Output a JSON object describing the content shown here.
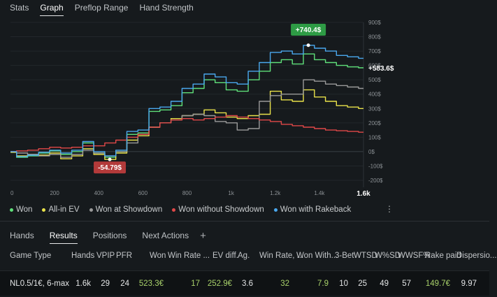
{
  "top_tabs": [
    {
      "label": "Stats"
    },
    {
      "label": "Graph"
    },
    {
      "label": "Preflop Range"
    },
    {
      "label": "Hand Strength"
    }
  ],
  "chart": {
    "callouts": {
      "peak": "+740.4$",
      "current": "+583.6$",
      "trough": "-54.79$"
    },
    "y_ticks": [
      "900$",
      "800$",
      "700$",
      "600$",
      "500$",
      "400$",
      "300$",
      "200$",
      "100$",
      "0$",
      "-100$",
      "-200$"
    ],
    "x_ticks": [
      "0",
      "200",
      "400",
      "600",
      "800",
      "1k",
      "1.2k",
      "1.4k",
      "1.6k"
    ],
    "colors": {
      "won": "#5fe07a",
      "all_in_ev": "#e9e24a",
      "showdown": "#9a9a9a",
      "without_showdown": "#e04848",
      "rakeback": "#4aa8ee",
      "peak_bg": "#2e9b45",
      "trough_bg": "#b33a3a"
    }
  },
  "chart_data": {
    "type": "line",
    "xlabel": "",
    "ylabel": "",
    "xlim": [
      0,
      1600
    ],
    "ylim": [
      -200,
      900
    ],
    "grid": true,
    "legend": "bottom",
    "x": [
      0,
      50,
      100,
      150,
      200,
      250,
      300,
      350,
      400,
      450,
      500,
      550,
      600,
      650,
      700,
      750,
      800,
      850,
      900,
      950,
      1000,
      1050,
      1100,
      1150,
      1200,
      1250,
      1300,
      1350,
      1400,
      1450,
      1500,
      1550,
      1600
    ],
    "series": [
      {
        "name": "Won",
        "color": "#5fe07a",
        "values": [
          -5,
          -40,
          -30,
          -10,
          5,
          -20,
          0,
          60,
          -10,
          -40,
          0,
          120,
          130,
          280,
          290,
          320,
          410,
          440,
          500,
          480,
          430,
          420,
          500,
          560,
          620,
          640,
          610,
          680,
          640,
          620,
          600,
          590,
          583.6
        ]
      },
      {
        "name": "All-in EV",
        "color": "#e9e24a",
        "values": [
          -5,
          -30,
          -20,
          -25,
          -10,
          -50,
          -30,
          20,
          -20,
          -54.79,
          -10,
          80,
          110,
          170,
          200,
          230,
          250,
          260,
          290,
          270,
          240,
          230,
          250,
          260,
          420,
          360,
          350,
          430,
          380,
          350,
          320,
          310,
          300
        ]
      },
      {
        "name": "Won at Showdown",
        "color": "#9a9a9a",
        "values": [
          0,
          -10,
          -20,
          -30,
          -20,
          -40,
          -20,
          10,
          -10,
          -30,
          0,
          60,
          120,
          170,
          200,
          220,
          250,
          260,
          250,
          210,
          200,
          150,
          160,
          350,
          390,
          400,
          400,
          500,
          490,
          470,
          460,
          450,
          440
        ]
      },
      {
        "name": "Won without Showdown",
        "color": "#e04848",
        "values": [
          0,
          5,
          10,
          20,
          30,
          25,
          30,
          40,
          40,
          60,
          80,
          100,
          120,
          170,
          200,
          220,
          230,
          220,
          230,
          240,
          250,
          240,
          230,
          220,
          210,
          190,
          180,
          170,
          160,
          150,
          145,
          140,
          135
        ]
      },
      {
        "name": "Won with Rakeback",
        "color": "#4aa8ee",
        "values": [
          0,
          -35,
          -25,
          -5,
          10,
          -10,
          10,
          70,
          0,
          -30,
          10,
          140,
          150,
          300,
          310,
          350,
          440,
          470,
          540,
          520,
          480,
          470,
          560,
          620,
          690,
          700,
          680,
          740.4,
          720,
          700,
          670,
          660,
          650
        ]
      }
    ]
  },
  "legend": [
    {
      "label": "Won",
      "color": "#5fe07a"
    },
    {
      "label": "All-in EV",
      "color": "#e9e24a"
    },
    {
      "label": "Won at Showdown",
      "color": "#9a9a9a"
    },
    {
      "label": "Won without Showdown",
      "color": "#e04848"
    },
    {
      "label": "Won with Rakeback",
      "color": "#4aa8ee"
    }
  ],
  "more_icon": "more-vertical-icon",
  "bottom_tabs": [
    {
      "label": "Hands"
    },
    {
      "label": "Results"
    },
    {
      "label": "Positions"
    },
    {
      "label": "Next Actions"
    }
  ],
  "add_tab": "+",
  "table": {
    "headers": [
      "Game Type",
      "Hands",
      "VPIP",
      "PFR",
      "Won",
      "Win Rate ...",
      "EV diff.",
      "Ag.",
      "Win Rate, ...",
      "Won With...",
      "3-Bet",
      "WTSD",
      "W%SD",
      "WWSF%",
      "Rake paid",
      "Dispersio..."
    ],
    "row": [
      "NL0.5/1€, 6-max",
      "1.6k",
      "29",
      "24",
      "523.3€",
      "17",
      "252.9€",
      "3.6",
      "32",
      "7.9",
      "10",
      "25",
      "49",
      "57",
      "149.7€",
      "9.97"
    ]
  }
}
